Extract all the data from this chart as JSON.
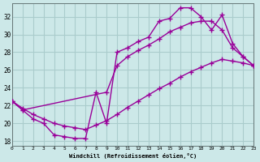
{
  "xlabel": "Windchill (Refroidissement éolien,°C)",
  "bg_color": "#cce8e8",
  "grid_color": "#aacccc",
  "line_color": "#990099",
  "xlim": [
    0,
    23
  ],
  "ylim": [
    17.5,
    33.5
  ],
  "yticks": [
    18,
    20,
    22,
    24,
    26,
    28,
    30,
    32
  ],
  "xticks": [
    0,
    1,
    2,
    3,
    4,
    5,
    6,
    7,
    8,
    9,
    10,
    11,
    12,
    13,
    14,
    15,
    16,
    17,
    18,
    19,
    20,
    21,
    22,
    23
  ],
  "curve1_x": [
    0,
    1,
    2,
    3,
    4,
    5,
    6,
    7,
    8,
    9,
    10,
    11,
    12,
    13,
    14,
    15,
    16,
    17,
    18,
    19,
    20,
    21,
    22,
    23
  ],
  "curve1_y": [
    22.5,
    21.5,
    20.5,
    20.0,
    18.7,
    18.5,
    18.3,
    18.3,
    23.5,
    20.0,
    28.0,
    28.5,
    29.2,
    29.7,
    31.5,
    31.8,
    33.0,
    33.0,
    32.0,
    30.5,
    32.2,
    29.0,
    27.5,
    26.5
  ],
  "curve2_x": [
    0,
    1,
    2,
    3,
    4,
    5,
    6,
    7,
    8,
    9,
    10,
    11,
    12,
    13,
    14,
    15,
    16,
    17,
    18,
    19,
    20,
    21,
    22,
    23
  ],
  "curve2_y": [
    22.5,
    21.7,
    21.0,
    20.5,
    20.0,
    19.7,
    19.5,
    19.3,
    19.8,
    20.3,
    21.0,
    21.8,
    22.5,
    23.2,
    23.9,
    24.5,
    25.2,
    25.8,
    26.3,
    26.8,
    27.2,
    27.0,
    26.8,
    26.5
  ],
  "curve3_x": [
    0,
    1,
    9,
    10,
    11,
    12,
    13,
    14,
    15,
    16,
    17,
    18,
    19,
    20,
    21,
    22,
    23
  ],
  "curve3_y": [
    22.5,
    21.5,
    23.5,
    26.5,
    27.5,
    28.2,
    28.8,
    29.5,
    30.3,
    30.8,
    31.3,
    31.5,
    31.5,
    30.5,
    28.5,
    27.5,
    26.5
  ]
}
